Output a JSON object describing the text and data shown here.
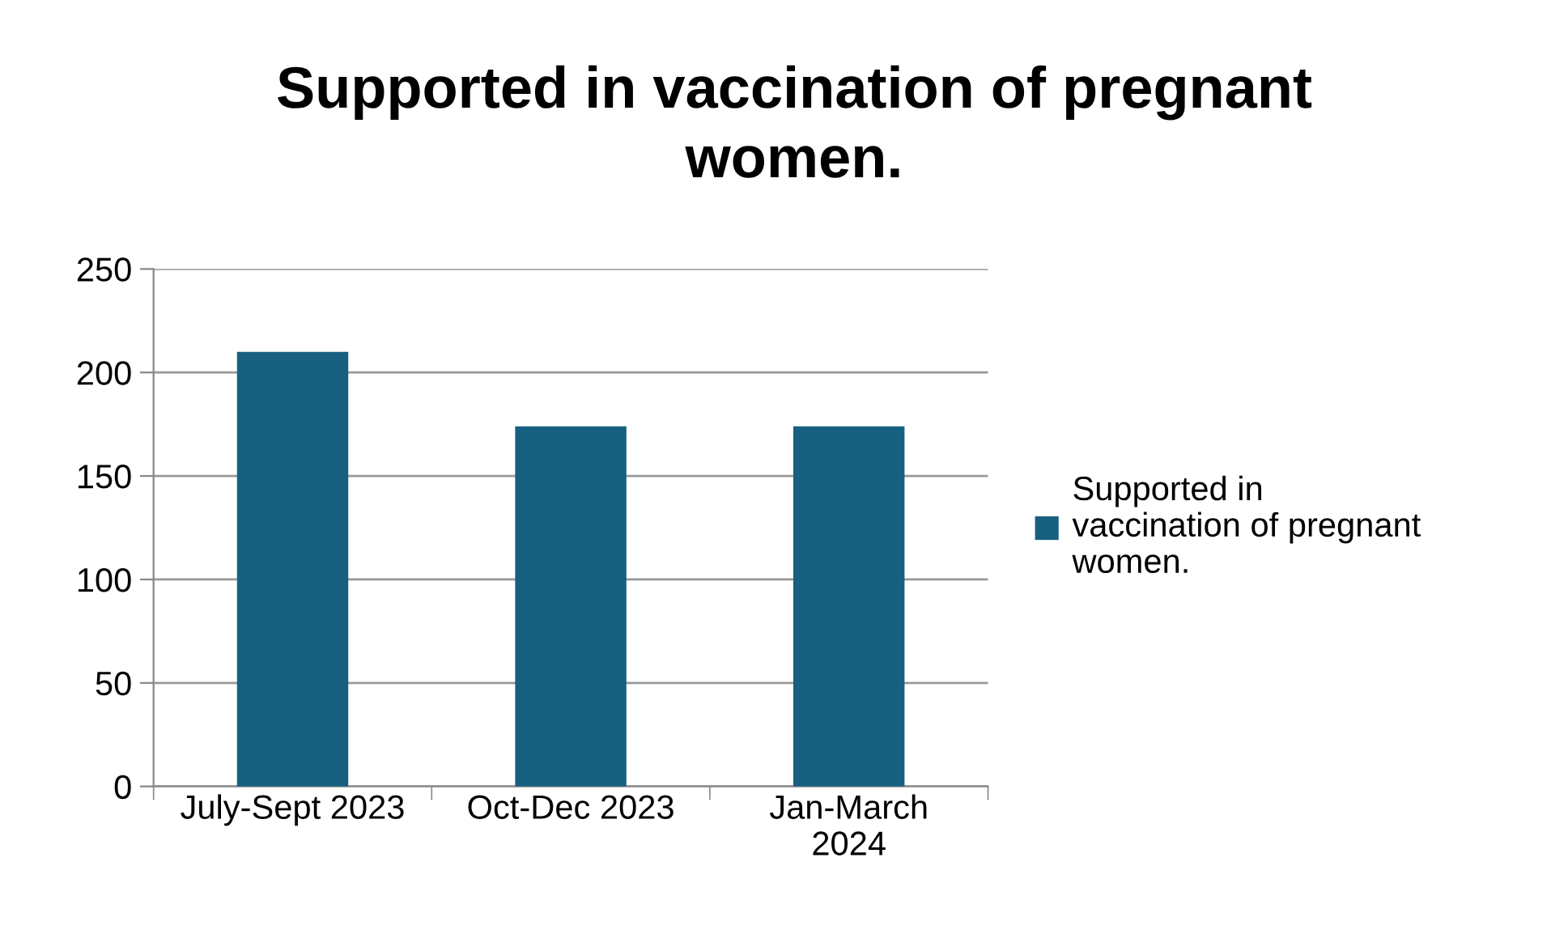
{
  "chart_data": {
    "type": "bar",
    "title": "Supported in vaccination of pregnant\nwomen.",
    "categories": [
      "July-Sept 2023",
      "Oct-Dec 2023",
      "Jan-March\n2024"
    ],
    "series": [
      {
        "name": "Supported in\nvaccination of pregnant\nwomen.",
        "color": "#17607f",
        "values": [
          210,
          174,
          174
        ]
      }
    ],
    "ylim": [
      0,
      250
    ],
    "yticks": [
      0,
      50,
      100,
      150,
      200,
      250
    ],
    "grid": "y",
    "legend": "right"
  }
}
